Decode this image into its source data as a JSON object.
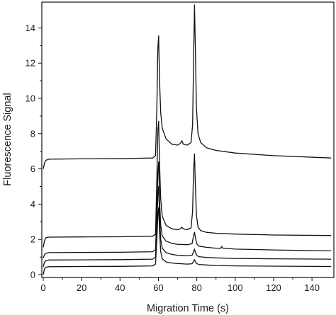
{
  "chart_data": {
    "type": "line",
    "xlabel": "Migration Time (s)",
    "ylabel": "Fluorescence Signal",
    "xlim": [
      0,
      150
    ],
    "ylim": [
      0,
      15.5
    ],
    "xticks": [
      0,
      20,
      40,
      60,
      80,
      100,
      120,
      140
    ],
    "yticks": [
      0,
      2,
      4,
      6,
      8,
      10,
      12,
      14
    ],
    "grid": false,
    "legend": "none",
    "series": [
      {
        "x": [
          0,
          0.7,
          1.5,
          3,
          20,
          40,
          57,
          58.5,
          59.2,
          59.7,
          60.1,
          60.6,
          61.2,
          62,
          64,
          67,
          70,
          71.5,
          72.2,
          73,
          75,
          77,
          77.8,
          78.3,
          78.8,
          79.2,
          79.8,
          80.6,
          82,
          85,
          90,
          100,
          120,
          150
        ],
        "y": [
          6.0,
          6.35,
          6.5,
          6.55,
          6.57,
          6.58,
          6.62,
          6.75,
          9.5,
          12.9,
          13.55,
          11.0,
          9.2,
          8.3,
          7.7,
          7.4,
          7.35,
          7.45,
          7.6,
          7.4,
          7.35,
          7.5,
          8.5,
          12.0,
          15.3,
          13.0,
          9.5,
          8.0,
          7.5,
          7.2,
          7.05,
          6.9,
          6.75,
          6.62
        ]
      },
      {
        "x": [
          0,
          0.7,
          1.5,
          3,
          20,
          40,
          57,
          58.5,
          59.2,
          59.7,
          60.1,
          60.6,
          61.2,
          62,
          64,
          67,
          70,
          71.5,
          72.2,
          73,
          75,
          77,
          77.8,
          78.3,
          78.8,
          79.2,
          79.8,
          80.6,
          82,
          85,
          90,
          100,
          120,
          150
        ],
        "y": [
          1.55,
          1.95,
          2.1,
          2.13,
          2.14,
          2.15,
          2.18,
          2.3,
          5.5,
          8.2,
          8.7,
          6.3,
          4.3,
          3.3,
          2.8,
          2.6,
          2.55,
          2.6,
          2.7,
          2.6,
          2.55,
          2.65,
          3.6,
          5.8,
          6.85,
          5.2,
          3.4,
          2.7,
          2.5,
          2.4,
          2.35,
          2.3,
          2.25,
          2.22
        ]
      },
      {
        "x": [
          0,
          0.7,
          1.5,
          3,
          20,
          40,
          57,
          58.5,
          59.2,
          59.7,
          60.1,
          60.6,
          61.2,
          62,
          64,
          67,
          70,
          75,
          77.5,
          78.3,
          78.8,
          79.3,
          80,
          81,
          85,
          90,
          92.5,
          93,
          93.5,
          100,
          120,
          150
        ],
        "y": [
          0.95,
          1.15,
          1.22,
          1.25,
          1.26,
          1.27,
          1.3,
          1.42,
          3.6,
          5.8,
          6.4,
          4.2,
          2.8,
          2.2,
          1.9,
          1.78,
          1.72,
          1.7,
          1.75,
          2.2,
          2.4,
          2.1,
          1.75,
          1.62,
          1.55,
          1.5,
          1.5,
          1.6,
          1.5,
          1.45,
          1.4,
          1.35
        ]
      },
      {
        "x": [
          0,
          0.7,
          1.5,
          3,
          20,
          40,
          57,
          58.5,
          59.2,
          59.7,
          60.1,
          60.6,
          61.2,
          62,
          64,
          67,
          70,
          75,
          77.5,
          78.3,
          78.8,
          79.3,
          80,
          81,
          85,
          90,
          100,
          120,
          150
        ],
        "y": [
          0.45,
          0.72,
          0.8,
          0.83,
          0.84,
          0.85,
          0.88,
          1.0,
          2.8,
          4.5,
          5.0,
          3.3,
          2.0,
          1.5,
          1.25,
          1.15,
          1.1,
          1.07,
          1.1,
          1.3,
          1.45,
          1.25,
          1.1,
          1.02,
          0.98,
          0.95,
          0.92,
          0.9,
          0.88
        ]
      },
      {
        "x": [
          0,
          0.7,
          1.5,
          3,
          20,
          40,
          57,
          58.5,
          59.2,
          59.7,
          60.1,
          60.6,
          61.2,
          62,
          64,
          67,
          70,
          75,
          77.5,
          78.3,
          78.8,
          79.3,
          80,
          81,
          85,
          90,
          100,
          120,
          150
        ],
        "y": [
          0.0,
          0.35,
          0.42,
          0.45,
          0.46,
          0.47,
          0.5,
          0.6,
          2.0,
          3.4,
          3.8,
          2.4,
          1.3,
          0.9,
          0.72,
          0.66,
          0.63,
          0.6,
          0.62,
          0.75,
          0.85,
          0.72,
          0.63,
          0.58,
          0.55,
          0.52,
          0.5,
          0.48,
          0.46
        ]
      }
    ]
  }
}
